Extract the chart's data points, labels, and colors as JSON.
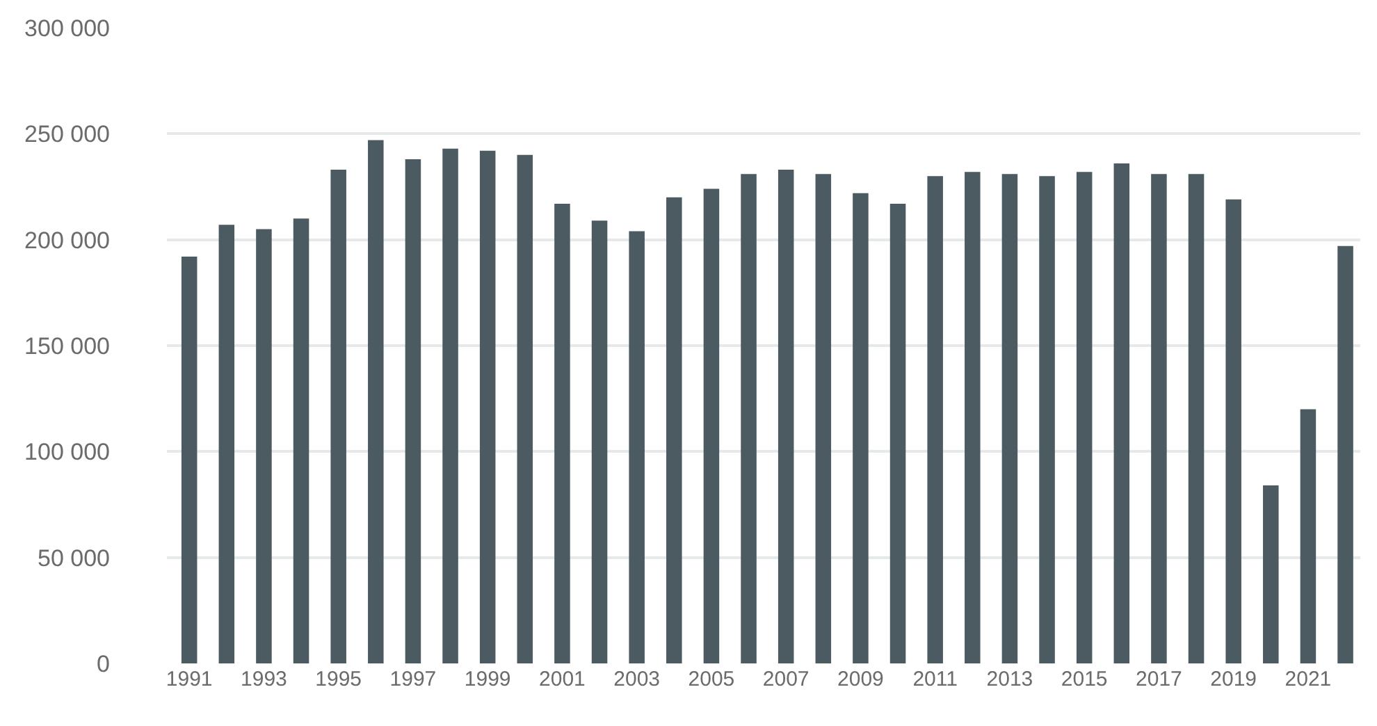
{
  "chart_data": {
    "type": "bar",
    "categories": [
      "1991",
      null,
      "1993",
      null,
      "1995",
      null,
      "1997",
      null,
      "1999",
      null,
      "2001",
      null,
      "2003",
      null,
      "2005",
      null,
      "2007",
      null,
      "2009",
      null,
      "2011",
      null,
      "2013",
      null,
      "2015",
      null,
      "2017",
      null,
      "2019",
      null,
      "2021",
      null
    ],
    "values": [
      192000,
      207000,
      205000,
      210000,
      233000,
      247000,
      238000,
      243000,
      242000,
      240000,
      217000,
      209000,
      204000,
      220000,
      224000,
      231000,
      233000,
      231000,
      222000,
      217000,
      230000,
      232000,
      231000,
      230000,
      232000,
      236000,
      231000,
      231000,
      219000,
      84000,
      120000,
      197000
    ],
    "color": "#4b5b61",
    "ylim": [
      0,
      300000
    ],
    "yticks": [
      0,
      {
        "value": 50000,
        "label": "50 000"
      },
      {
        "value": 100000,
        "label": "100 000"
      },
      {
        "value": 150000,
        "label": "150 000"
      },
      {
        "value": 200000,
        "label": "200 000"
      },
      {
        "value": 250000,
        "label": "250 000"
      },
      {
        "value": 300000,
        "label": "300 000"
      }
    ],
    "grid": "y"
  }
}
